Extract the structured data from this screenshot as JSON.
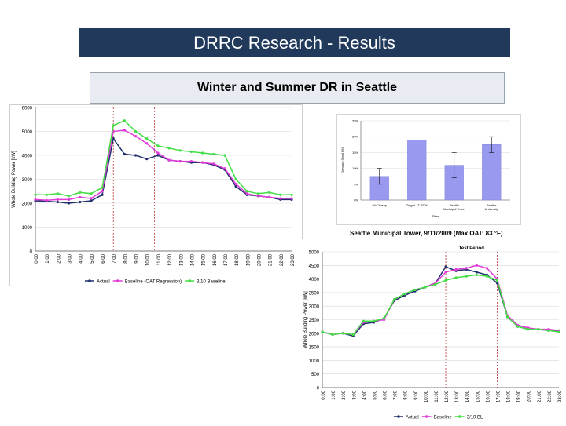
{
  "header": {
    "title": "DRRC Research - Results"
  },
  "subheader": {
    "title": "Winter and Summer DR in Seattle"
  },
  "chart_data": [
    {
      "type": "line",
      "ylabel": "Whole Building Power [kW]",
      "ylim": [
        0,
        6000
      ],
      "yticks": [
        "0",
        "1000",
        "2000",
        "3000",
        "4000",
        "5000",
        "6000"
      ],
      "categories": [
        "0:00",
        "1:00",
        "2:00",
        "3:00",
        "4:00",
        "5:00",
        "6:00",
        "7:00",
        "8:00",
        "9:00",
        "10:00",
        "11:00",
        "12:00",
        "13:00",
        "14:00",
        "15:00",
        "16:00",
        "17:00",
        "18:00",
        "19:00",
        "20:00",
        "21:00",
        "22:00",
        "23:00"
      ],
      "event_markers": [
        7.0,
        10.7
      ],
      "series": [
        {
          "name": "Actual",
          "color": "#1f2f6e",
          "values": [
            2100,
            2080,
            2050,
            2000,
            2050,
            2100,
            2350,
            4700,
            4050,
            4000,
            3850,
            4000,
            3800,
            3750,
            3700,
            3700,
            3600,
            3400,
            2700,
            2350,
            2300,
            2250,
            2150,
            2150
          ]
        },
        {
          "name": "Baseline (OAT Regression)",
          "color": "#e03ad8",
          "values": [
            2150,
            2120,
            2150,
            2150,
            2250,
            2200,
            2500,
            5000,
            5050,
            4800,
            4500,
            4100,
            3800,
            3750,
            3750,
            3700,
            3650,
            3450,
            2800,
            2400,
            2300,
            2250,
            2200,
            2200
          ]
        },
        {
          "name": "3/10 Baseline",
          "color": "#44dd44",
          "values": [
            2350,
            2350,
            2400,
            2300,
            2450,
            2400,
            2650,
            5250,
            5450,
            5000,
            4700,
            4400,
            4300,
            4200,
            4150,
            4100,
            4050,
            4000,
            3000,
            2500,
            2400,
            2450,
            2350,
            2350
          ]
        }
      ]
    },
    {
      "type": "bar",
      "title": "Seattle Municipal Tower, 9/11/2009 (Max OAT: 83 °F)",
      "xlabel": "Sites",
      "ylabel": "Demand Shed [%]",
      "ylim": [
        0,
        25
      ],
      "yticks": [
        "0%",
        "5%",
        "10%",
        "15%",
        "20%",
        "25%"
      ],
      "categories": [
        "McClinsey",
        "Target - T-2004",
        "Seattle Municipal Tower",
        "Seattle University"
      ],
      "values": [
        7.5,
        19,
        11,
        17.5
      ],
      "errors": [
        2.5,
        0,
        4,
        2.5
      ],
      "color": "#9999f0"
    },
    {
      "type": "line",
      "ylabel": "Whole Building Power [kW]",
      "ylim": [
        0,
        5000
      ],
      "yticks": [
        "0",
        "500",
        "1000",
        "1500",
        "2000",
        "2500",
        "3000",
        "3500",
        "4000",
        "4500",
        "5000"
      ],
      "categories": [
        "0:00",
        "1:00",
        "2:00",
        "3:00",
        "4:00",
        "5:00",
        "6:00",
        "7:00",
        "8:00",
        "9:00",
        "10:00",
        "11:00",
        "12:00",
        "13:00",
        "14:00",
        "15:00",
        "16:00",
        "17:00",
        "18:00",
        "19:00",
        "20:00",
        "21:00",
        "22:00",
        "23:00"
      ],
      "annotation": "Test Period",
      "event_markers": [
        12.0,
        17.0
      ],
      "series": [
        {
          "name": "Actual",
          "color": "#1f2f6e",
          "values": [
            2050,
            1950,
            2000,
            1900,
            2350,
            2400,
            2550,
            3200,
            3400,
            3550,
            3700,
            3850,
            4450,
            4300,
            4350,
            4250,
            4150,
            3850,
            2600,
            2250,
            2150,
            2150,
            2100,
            2100
          ]
        },
        {
          "name": "Baseline",
          "color": "#e03ad8",
          "values": [
            2050,
            1950,
            2000,
            1950,
            2400,
            2450,
            2500,
            3250,
            3450,
            3600,
            3700,
            3850,
            4250,
            4350,
            4400,
            4500,
            4400,
            4000,
            2650,
            2300,
            2200,
            2150,
            2150,
            2100
          ]
        },
        {
          "name": "3/10 BL",
          "color": "#44dd44",
          "values": [
            2050,
            1950,
            2000,
            1950,
            2450,
            2450,
            2550,
            3250,
            3450,
            3600,
            3700,
            3800,
            3950,
            4050,
            4100,
            4150,
            4100,
            3950,
            2600,
            2250,
            2150,
            2150,
            2100,
            2050
          ]
        }
      ]
    }
  ]
}
